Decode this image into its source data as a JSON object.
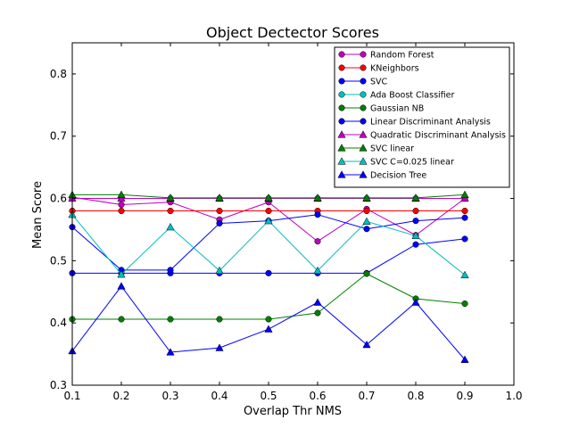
{
  "chart_data": {
    "type": "line",
    "title": "Object Dectector Scores",
    "xlabel": "Overlap Thr NMS",
    "ylabel": "Mean Score",
    "xlim": [
      0.1,
      1.0
    ],
    "ylim": [
      0.3,
      0.85
    ],
    "xticks": [
      "0.1",
      "0.2",
      "0.3",
      "0.4",
      "0.5",
      "0.6",
      "0.7",
      "0.8",
      "0.9",
      "1.0"
    ],
    "yticks": [
      "0.3",
      "0.4",
      "0.5",
      "0.6",
      "0.7",
      "0.8"
    ],
    "grid": false,
    "legend_position": "top-right",
    "x": [
      0.1,
      0.2,
      0.3,
      0.4,
      0.5,
      0.6,
      0.7,
      0.8,
      0.9
    ],
    "series": [
      {
        "name": "Random Forest",
        "color": "#bf00bf",
        "marker": "circle",
        "values": [
          0.602,
          0.59,
          0.594,
          0.566,
          0.594,
          0.531,
          0.583,
          0.541,
          0.6
        ]
      },
      {
        "name": "KNeighbors",
        "color": "#ff0000",
        "marker": "circle",
        "values": [
          0.58,
          0.58,
          0.58,
          0.58,
          0.58,
          0.58,
          0.58,
          0.58,
          0.58
        ]
      },
      {
        "name": "SVC",
        "color": "#0000ff",
        "marker": "circle",
        "values": [
          0.48,
          0.48,
          0.48,
          0.48,
          0.48,
          0.48,
          0.48,
          0.526,
          0.535
        ]
      },
      {
        "name": "Ada Boost Classifier",
        "color": "#00bfbf",
        "marker": "circle",
        "values": [
          0.6,
          0.6,
          0.6,
          0.6,
          0.6,
          0.6,
          0.6,
          0.6,
          0.6
        ]
      },
      {
        "name": "Gaussian NB",
        "color": "#008000",
        "marker": "circle",
        "values": [
          0.406,
          0.406,
          0.406,
          0.406,
          0.406,
          0.416,
          0.479,
          0.439,
          0.431
        ]
      },
      {
        "name": "Linear Discriminant Analysis",
        "color": "#0000ff",
        "marker": "circle",
        "values": [
          0.554,
          0.485,
          0.485,
          0.56,
          0.564,
          0.574,
          0.551,
          0.564,
          0.569
        ]
      },
      {
        "name": "Quadratic Discriminant Analysis",
        "color": "#bf00bf",
        "marker": "triangle",
        "values": [
          0.6,
          0.6,
          0.6,
          0.6,
          0.6,
          0.6,
          0.6,
          0.6,
          0.6
        ]
      },
      {
        "name": "SVC linear",
        "color": "#008000",
        "marker": "triangle",
        "values": [
          0.606,
          0.606,
          0.601,
          0.601,
          0.601,
          0.601,
          0.601,
          0.601,
          0.606
        ]
      },
      {
        "name": "SVC C=0.025 linear",
        "color": "#00bfbf",
        "marker": "triangle",
        "values": [
          0.574,
          0.478,
          0.554,
          0.484,
          0.564,
          0.484,
          0.563,
          0.54,
          0.477
        ]
      },
      {
        "name": "Decision Tree",
        "color": "#0000ff",
        "marker": "triangle",
        "values": [
          0.355,
          0.459,
          0.353,
          0.36,
          0.39,
          0.433,
          0.365,
          0.433,
          0.341
        ]
      }
    ]
  }
}
